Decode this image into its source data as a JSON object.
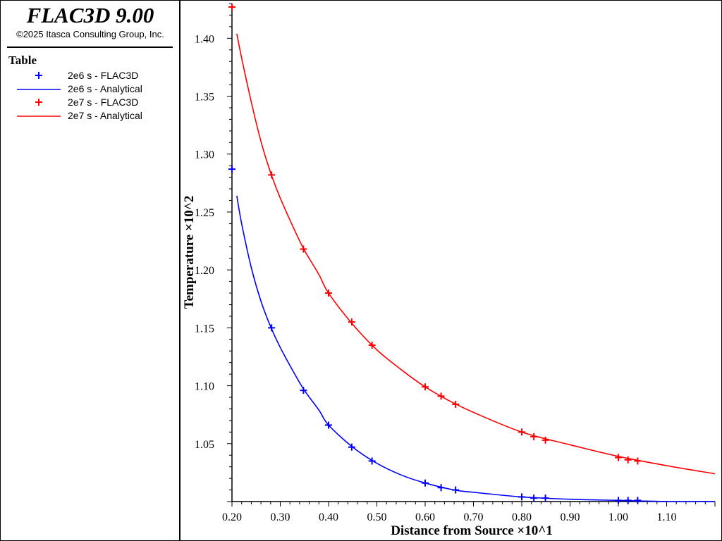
{
  "app": {
    "title": "FLAC3D 9.00",
    "copyright": "©2025 Itasca Consulting Group, Inc."
  },
  "legend": {
    "title": "Table",
    "items": [
      {
        "label": "2e6 s - FLAC3D",
        "kind": "marker",
        "color": "#0000ff"
      },
      {
        "label": "2e6 s - Analytical",
        "kind": "line",
        "color": "#0000ff"
      },
      {
        "label": "2e7 s - FLAC3D",
        "kind": "marker",
        "color": "#ff0000"
      },
      {
        "label": "2e7 s - Analytical",
        "kind": "line",
        "color": "#ff0000"
      }
    ]
  },
  "chart_data": {
    "type": "line",
    "xlabel": "Distance from Source ×10^1",
    "ylabel": "Temperature ×10^2",
    "xlim": [
      0.2,
      1.2
    ],
    "ylim": [
      1.0,
      1.43
    ],
    "x_ticks": [
      "0.20",
      "0.30",
      "0.40",
      "0.50",
      "0.60",
      "0.70",
      "0.80",
      "0.90",
      "1.00",
      "1.10"
    ],
    "y_ticks": [
      "1.05",
      "1.10",
      "1.15",
      "1.20",
      "1.25",
      "1.30",
      "1.35",
      "1.40"
    ],
    "grid": false,
    "series": [
      {
        "name": "2e6 s - FLAC3D",
        "kind": "markers",
        "color": "#0000ff",
        "x": [
          0.2,
          0.282,
          0.348,
          0.4,
          0.448,
          0.49,
          0.6,
          0.633,
          0.663,
          0.8,
          0.825,
          0.849,
          1.0,
          1.02,
          1.04
        ],
        "y": [
          1.287,
          1.15,
          1.096,
          1.066,
          1.047,
          1.035,
          1.016,
          1.012,
          1.01,
          1.004,
          1.003,
          1.003,
          1.001,
          1.001,
          1.001
        ]
      },
      {
        "name": "2e6 s - Analytical",
        "kind": "line",
        "color": "#0000ff",
        "x": [
          0.21,
          0.22,
          0.24,
          0.26,
          0.28,
          0.3,
          0.33,
          0.35,
          0.38,
          0.4,
          0.45,
          0.5,
          0.55,
          0.6,
          0.66,
          0.7,
          0.8,
          0.9,
          1.0,
          1.1,
          1.2
        ],
        "y": [
          1.264,
          1.24,
          1.202,
          1.173,
          1.151,
          1.133,
          1.11,
          1.096,
          1.079,
          1.066,
          1.047,
          1.033,
          1.023,
          1.016,
          1.01,
          1.008,
          1.004,
          1.002,
          1.001,
          1.0,
          1.0
        ]
      },
      {
        "name": "2e7 s - FLAC3D",
        "kind": "markers",
        "color": "#ff0000",
        "x": [
          0.2,
          0.282,
          0.348,
          0.4,
          0.448,
          0.49,
          0.6,
          0.633,
          0.663,
          0.8,
          0.825,
          0.849,
          1.0,
          1.02,
          1.04
        ],
        "y": [
          1.427,
          1.282,
          1.218,
          1.18,
          1.155,
          1.135,
          1.099,
          1.091,
          1.084,
          1.06,
          1.056,
          1.053,
          1.038,
          1.036,
          1.035
        ]
      },
      {
        "name": "2e7 s - Analytical",
        "kind": "line",
        "color": "#ff0000",
        "x": [
          0.21,
          0.22,
          0.24,
          0.26,
          0.28,
          0.3,
          0.33,
          0.35,
          0.38,
          0.4,
          0.45,
          0.5,
          0.55,
          0.6,
          0.65,
          0.7,
          0.8,
          0.9,
          1.0,
          1.1,
          1.2
        ],
        "y": [
          1.404,
          1.383,
          1.345,
          1.311,
          1.284,
          1.262,
          1.234,
          1.217,
          1.196,
          1.18,
          1.153,
          1.131,
          1.114,
          1.099,
          1.087,
          1.077,
          1.06,
          1.049,
          1.039,
          1.031,
          1.024
        ]
      }
    ]
  }
}
